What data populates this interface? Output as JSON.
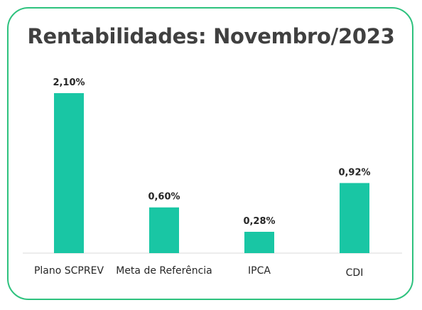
{
  "chart_data": {
    "type": "bar",
    "title": "Rentabilidades: Novembro/2023",
    "categories": [
      "Plano SCPREV",
      "Meta de Referência",
      "IPCA",
      "CDI"
    ],
    "values": [
      2.1,
      0.6,
      0.28,
      0.92
    ],
    "data_labels": [
      "2,10%",
      "0,60%",
      "0,28%",
      "0,92%"
    ],
    "unit": "%",
    "ylim": [
      0,
      2.1
    ],
    "grid": false,
    "legend": "none",
    "bar_color": "#19c6a4",
    "border_color": "#2ec27e",
    "title_color": "#404040"
  }
}
